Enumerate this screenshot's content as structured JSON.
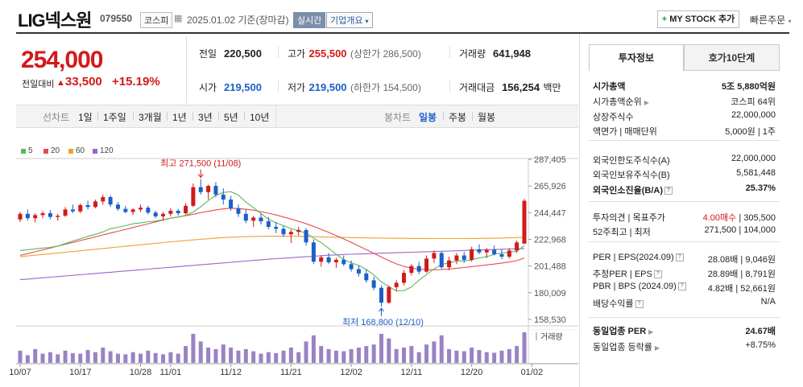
{
  "header": {
    "name": "LIG넥스원",
    "code": "079550",
    "market": "코스피",
    "date": "2025.01.02 기준(장마감)",
    "realtime": "실시간",
    "company_overview": "기업개요",
    "mystock_label": "MY STOCK 추가",
    "quick_order": "빠른주문"
  },
  "price": {
    "current": "254,000",
    "prev_label": "전일대비",
    "change": "33,500",
    "change_pct": "+15.19%"
  },
  "quote": {
    "prev_close_label": "전일",
    "prev_close": "220,500",
    "high_label": "고가",
    "high": "255,500",
    "upper_limit": "(상한가 286,500)",
    "volume_label": "거래량",
    "volume": "641,948",
    "open_label": "시가",
    "open": "219,500",
    "low_label": "저가",
    "low": "219,500",
    "lower_limit": "(하한가 154,500)",
    "amount_label": "거래대금",
    "amount": "156,254",
    "amount_unit": "백만"
  },
  "periods": {
    "line_label": "선차트",
    "line_items": [
      "1일",
      "1주일",
      "3개월",
      "1년",
      "3년",
      "5년",
      "10년"
    ],
    "candle_label": "봉차트",
    "candle_items": [
      "일봉",
      "주봉",
      "월봉"
    ],
    "selected": "일봉"
  },
  "colors": {
    "up": "#d21a1a",
    "down": "#1b5fc7",
    "ma5": "#5cb85c",
    "ma20": "#e84a4a",
    "ma60": "#f0a030",
    "ma120": "#9966cc",
    "volume": "#9a82c4"
  },
  "chart_data": {
    "type": "candlestick",
    "legend": [
      "5",
      "20",
      "60",
      "120"
    ],
    "y_ticks": [
      "287,405",
      "265,926",
      "244,447",
      "222,968",
      "201,488",
      "180,009",
      "158,530"
    ],
    "ylim": [
      158530,
      287405
    ],
    "x_ticks": [
      "10/07",
      "10/17",
      "10/28",
      "11/01",
      "11/12",
      "11/21",
      "12/02",
      "12/11",
      "12/20",
      "01/02"
    ],
    "x_tick_index": [
      0,
      8,
      16,
      20,
      28,
      36,
      44,
      52,
      60,
      68
    ],
    "high_annotation": "최고 271,500 (11/08)",
    "low_annotation": "최저 168,800 (12/10)",
    "volume_label": "거래량",
    "candles": [
      [
        239000,
        245000,
        237000,
        243500
      ],
      [
        243500,
        247000,
        238000,
        240000
      ],
      [
        240000,
        244000,
        236500,
        242500
      ],
      [
        242500,
        246000,
        240000,
        244000
      ],
      [
        244000,
        246500,
        239000,
        241000
      ],
      [
        241000,
        243500,
        238000,
        242000
      ],
      [
        242000,
        249000,
        241000,
        247000
      ],
      [
        247000,
        251000,
        244000,
        245500
      ],
      [
        245500,
        252000,
        244000,
        250500
      ],
      [
        250500,
        254000,
        247000,
        249000
      ],
      [
        249000,
        255000,
        248000,
        253500
      ],
      [
        253500,
        259000,
        251000,
        257000
      ],
      [
        257000,
        258500,
        249000,
        251000
      ],
      [
        251000,
        253000,
        246000,
        247500
      ],
      [
        247500,
        250000,
        244000,
        245000
      ],
      [
        245000,
        248000,
        242500,
        247000
      ],
      [
        247000,
        251000,
        245000,
        248500
      ],
      [
        248500,
        250000,
        243000,
        244500
      ],
      [
        244500,
        246000,
        240000,
        241500
      ],
      [
        241500,
        245000,
        238000,
        243500
      ],
      [
        243500,
        248000,
        241500,
        246000
      ],
      [
        246000,
        247500,
        242000,
        244000
      ],
      [
        244000,
        252000,
        243000,
        250000
      ],
      [
        250000,
        268000,
        249000,
        265000
      ],
      [
        265000,
        271500,
        259000,
        261000
      ],
      [
        261000,
        267000,
        255000,
        266000
      ],
      [
        266000,
        269000,
        257000,
        259000
      ],
      [
        259000,
        264000,
        251000,
        255000
      ],
      [
        255000,
        258000,
        246000,
        248000
      ],
      [
        248000,
        251000,
        241000,
        243500
      ],
      [
        243500,
        247000,
        236000,
        238000
      ],
      [
        238000,
        242000,
        233000,
        240500
      ],
      [
        240500,
        244000,
        235000,
        237500
      ],
      [
        237500,
        241000,
        231000,
        233000
      ],
      [
        233000,
        237000,
        228000,
        231500
      ],
      [
        231500,
        234000,
        225000,
        227000
      ],
      [
        227000,
        231000,
        220000,
        229000
      ],
      [
        229000,
        233000,
        226000,
        230500
      ],
      [
        230500,
        232000,
        218000,
        220500
      ],
      [
        220500,
        223000,
        203000,
        205000
      ],
      [
        205000,
        210000,
        201000,
        208500
      ],
      [
        208500,
        212000,
        203000,
        204500
      ],
      [
        204500,
        208000,
        200000,
        206500
      ],
      [
        206500,
        210000,
        201500,
        203000
      ],
      [
        203000,
        206000,
        197000,
        199000
      ],
      [
        199000,
        202000,
        193000,
        195500
      ],
      [
        195500,
        199000,
        188000,
        190000
      ],
      [
        190000,
        193000,
        182000,
        184000
      ],
      [
        184000,
        186000,
        168800,
        172000
      ],
      [
        172000,
        186000,
        171000,
        184500
      ],
      [
        184500,
        190000,
        181000,
        188000
      ],
      [
        188000,
        198000,
        186000,
        196000
      ],
      [
        196000,
        203000,
        194000,
        201500
      ],
      [
        201500,
        205000,
        195000,
        197000
      ],
      [
        197000,
        210000,
        196000,
        207500
      ],
      [
        207500,
        214000,
        204000,
        212000
      ],
      [
        212000,
        213000,
        199000,
        200500
      ],
      [
        200500,
        209000,
        198000,
        206000
      ],
      [
        206000,
        212000,
        203000,
        210000
      ],
      [
        210000,
        213000,
        204000,
        206500
      ],
      [
        206500,
        217000,
        205000,
        215000
      ],
      [
        215000,
        219000,
        211000,
        212500
      ],
      [
        212500,
        216000,
        208000,
        214500
      ],
      [
        214500,
        218000,
        210000,
        211000
      ],
      [
        211000,
        215000,
        207000,
        209000
      ],
      [
        209000,
        216000,
        207500,
        214000
      ],
      [
        214000,
        222000,
        212000,
        220500
      ],
      [
        219500,
        255500,
        219500,
        254000
      ]
    ],
    "ma5": [
      214000,
      214600,
      215300,
      216000,
      216500,
      217600,
      219600,
      221600,
      223400,
      225400,
      227000,
      229000,
      231500,
      232700,
      234000,
      235500,
      236200,
      237200,
      237700,
      238800,
      240000,
      241000,
      242400,
      245000,
      249200,
      254200,
      258400,
      260700,
      261400,
      258600,
      253000,
      248500,
      243800,
      239200,
      236300,
      234000,
      231700,
      229900,
      228000,
      224100,
      220300,
      215800,
      210900,
      206700,
      204100,
      202000,
      198700,
      194500,
      188700,
      184900,
      181500,
      181700,
      184700,
      190100,
      194600,
      199200,
      202800,
      204000,
      205700,
      205600,
      206500,
      208000,
      209000,
      211000,
      212000,
      212500,
      213500,
      218000
    ],
    "ma20": [
      210000,
      211500,
      213000,
      214500,
      216000,
      217500,
      219000,
      220500,
      222000,
      223500,
      225000,
      226500,
      228000,
      229500,
      231000,
      232500,
      234000,
      235500,
      237000,
      238500,
      240000,
      241000,
      242000,
      243200,
      244500,
      245600,
      246700,
      247500,
      248000,
      247800,
      247200,
      246400,
      245300,
      244000,
      242600,
      241000,
      239300,
      237500,
      235600,
      233400,
      231000,
      228600,
      226000,
      223300,
      220500,
      217600,
      214700,
      211700,
      208700,
      205800,
      203200,
      201200,
      199800,
      199000,
      198600,
      198500,
      198700,
      199100,
      199700,
      200300,
      201000,
      201700,
      202400,
      203100,
      203900,
      204700,
      205800,
      208000
    ],
    "ma60": [
      209000,
      209600,
      210200,
      210800,
      211400,
      212000,
      212600,
      213200,
      213800,
      214400,
      215000,
      215600,
      216200,
      216800,
      217400,
      218000,
      218600,
      219200,
      219800,
      220400,
      221000,
      221500,
      222000,
      222500,
      223000,
      223500,
      224000,
      224400,
      224700,
      225000,
      225200,
      225300,
      225400,
      225500,
      225500,
      225500,
      225500,
      225400,
      225300,
      225200,
      225000,
      224800,
      224700,
      224500,
      224400,
      224300,
      224200,
      224100,
      224000,
      223900,
      223800,
      223800,
      223700,
      223700,
      223700,
      223600,
      223600,
      223600,
      223600,
      223600,
      223700,
      223700,
      223800,
      223900,
      224000,
      224200,
      224400,
      224800
    ],
    "ma120": [
      190500,
      191000,
      191500,
      192000,
      192500,
      193000,
      193500,
      194000,
      194500,
      195000,
      195500,
      196000,
      196500,
      197000,
      197500,
      198000,
      198500,
      199000,
      199500,
      200000,
      200500,
      201000,
      201500,
      202000,
      202500,
      203000,
      203500,
      204000,
      204500,
      205000,
      205500,
      206000,
      206500,
      207000,
      207400,
      207800,
      208200,
      208600,
      209000,
      209400,
      209800,
      210200,
      210500,
      210800,
      211000,
      211200,
      211400,
      211600,
      211800,
      212000,
      212200,
      212400,
      212600,
      212800,
      213000,
      213200,
      213400,
      213600,
      213800,
      214000,
      214200,
      214400,
      214600,
      214800,
      215000,
      215200,
      215400,
      215600
    ],
    "volume": [
      0.4,
      0.25,
      0.45,
      0.3,
      0.35,
      0.28,
      0.4,
      0.32,
      0.3,
      0.42,
      0.35,
      0.5,
      0.38,
      0.3,
      0.28,
      0.35,
      0.3,
      0.4,
      0.32,
      0.28,
      0.35,
      0.3,
      0.55,
      0.95,
      0.7,
      0.5,
      0.45,
      0.6,
      0.5,
      0.4,
      0.45,
      0.38,
      0.3,
      0.35,
      0.32,
      0.4,
      0.5,
      0.35,
      0.7,
      0.9,
      0.55,
      0.45,
      0.4,
      0.38,
      0.45,
      0.5,
      0.55,
      0.6,
      0.95,
      0.8,
      0.45,
      0.5,
      0.55,
      0.35,
      0.6,
      0.7,
      0.9,
      0.45,
      0.4,
      0.38,
      0.5,
      0.42,
      0.35,
      0.33,
      0.4,
      0.45,
      0.55,
      1.0
    ]
  },
  "invest": {
    "tab_active": "투자정보",
    "tab_other": "호가10단계",
    "rows": [
      {
        "l": "시가총액",
        "v": "5조 5,880억원",
        "bold": true
      },
      {
        "l": "시가총액순위",
        "v": "코스피 64위"
      },
      {
        "l": "상장주식수",
        "v": "22,000,000"
      },
      {
        "l": "액면가 | 매매단위",
        "v": "5,000원 | 1주"
      },
      {
        "l": "외국인한도주식수(A)",
        "v": "22,000,000"
      },
      {
        "l": "외국인보유주식수(B)",
        "v": "5,581,448"
      },
      {
        "l": "외국인소진율(B/A)",
        "v": "25.37%",
        "bold": true
      },
      {
        "l": "투자의견 | 목표주가",
        "v1": "4.00매수",
        "v": " | 305,500"
      },
      {
        "l": "52주최고 | 최저",
        "v": "271,500 | 104,000"
      },
      {
        "l": "PER | EPS(2024.09)",
        "v": "28.08배 | 9,046원"
      },
      {
        "l": "추정PER | EPS",
        "v": "28.89배 | 8,791원"
      },
      {
        "l": "PBR | BPS (2024.09)",
        "v": "4.82배 | 52,661원"
      },
      {
        "l": "배당수익률",
        "v": "N/A"
      },
      {
        "l": "동일업종 PER",
        "v": "24.67배",
        "bold": true
      },
      {
        "l": "동일업종 등락률",
        "v": "+8.75%",
        "red": true
      }
    ]
  }
}
